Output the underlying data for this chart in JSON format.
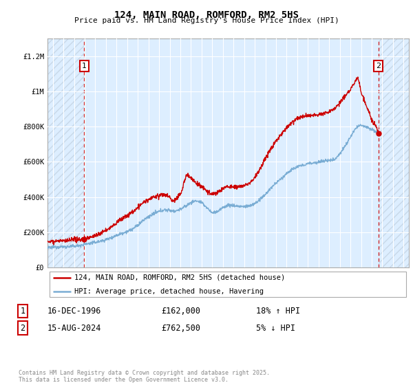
{
  "title": "124, MAIN ROAD, ROMFORD, RM2 5HS",
  "subtitle": "Price paid vs. HM Land Registry's House Price Index (HPI)",
  "legend_label_red": "124, MAIN ROAD, ROMFORD, RM2 5HS (detached house)",
  "legend_label_blue": "HPI: Average price, detached house, Havering",
  "annotation1_date": "16-DEC-1996",
  "annotation1_price": "£162,000",
  "annotation1_hpi": "18% ↑ HPI",
  "annotation2_date": "15-AUG-2024",
  "annotation2_price": "£762,500",
  "annotation2_hpi": "5% ↓ HPI",
  "footer": "Contains HM Land Registry data © Crown copyright and database right 2025.\nThis data is licensed under the Open Government Licence v3.0.",
  "color_red": "#cc0000",
  "color_blue": "#7aadd4",
  "bg_color": "#ddeeff",
  "hatch_color": "#c8d8e8",
  "ylim": [
    0,
    1300000
  ],
  "xlim_start": 1993.5,
  "xlim_end": 2027.5,
  "marker1_x": 1996.96,
  "marker1_y": 162000,
  "marker2_x": 2024.62,
  "marker2_y": 762500,
  "vline1_x": 1996.96,
  "vline2_x": 2024.62,
  "yticks": [
    0,
    200000,
    400000,
    600000,
    800000,
    1000000,
    1200000
  ],
  "ytick_labels": [
    "£0",
    "£200K",
    "£400K",
    "£600K",
    "£800K",
    "£1M",
    "£1.2M"
  ]
}
